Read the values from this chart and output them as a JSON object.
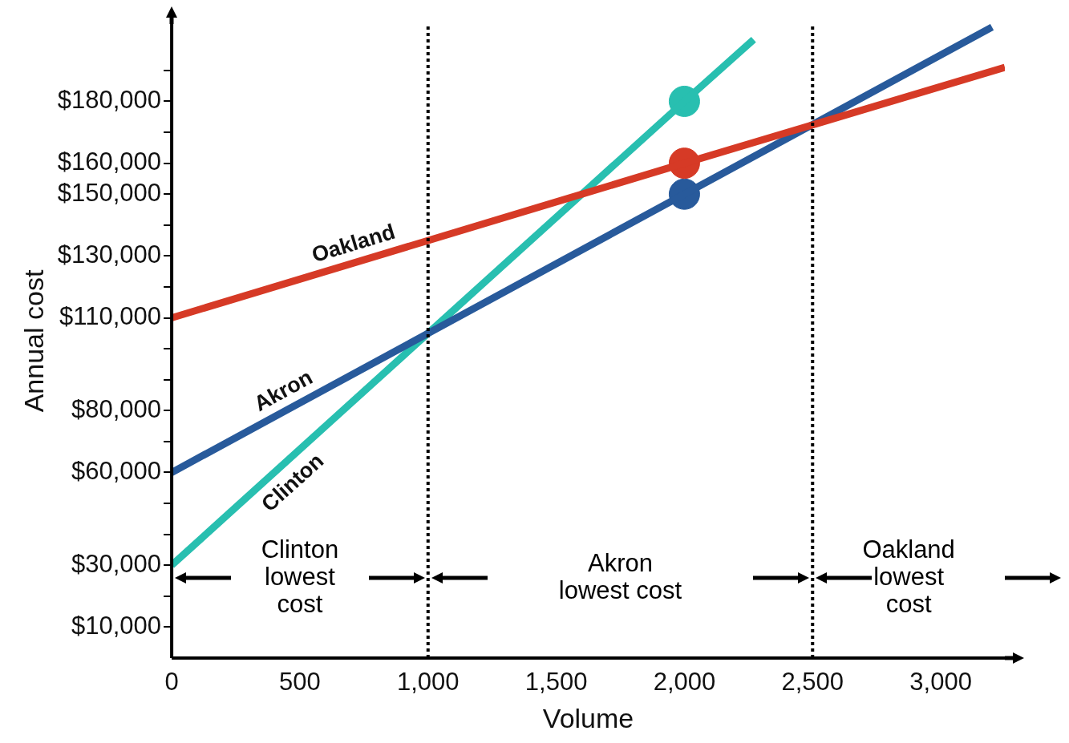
{
  "chart_data": {
    "type": "line",
    "xlabel": "Volume",
    "ylabel": "Annual cost",
    "xlim": [
      0,
      3250
    ],
    "ylim": [
      0,
      205000
    ],
    "xticks": [
      0,
      500,
      {
        "value": 1000,
        "label": "1,000"
      },
      {
        "value": 1500,
        "label": "1,500"
      },
      {
        "value": 2000,
        "label": "2,000"
      },
      {
        "value": 2500,
        "label": "2,500"
      },
      {
        "value": 3000,
        "label": "3,000"
      }
    ],
    "yticks": [
      {
        "value": 10000,
        "label": "$10,000"
      },
      {
        "value": 20000,
        "label": null
      },
      {
        "value": 30000,
        "label": "$30,000"
      },
      {
        "value": 40000,
        "label": null
      },
      {
        "value": 50000,
        "label": null
      },
      {
        "value": 60000,
        "label": "$60,000"
      },
      {
        "value": 70000,
        "label": null
      },
      {
        "value": 80000,
        "label": "$80,000"
      },
      {
        "value": 90000,
        "label": null
      },
      {
        "value": 100000,
        "label": null
      },
      {
        "value": 110000,
        "label": "$110,000"
      },
      {
        "value": 120000,
        "label": null
      },
      {
        "value": 130000,
        "label": "$130,000"
      },
      {
        "value": 140000,
        "label": null
      },
      {
        "value": 150000,
        "label": "$150,000"
      },
      {
        "value": 160000,
        "label": "$160,000"
      },
      {
        "value": 170000,
        "label": null
      },
      {
        "value": 180000,
        "label": "$180,000"
      },
      {
        "value": 190000,
        "label": null
      }
    ],
    "series": [
      {
        "name": "Oakland",
        "color": "#d63a26",
        "x": [
          0,
          2000,
          3250
        ],
        "values": [
          110000,
          160000,
          191000
        ]
      },
      {
        "name": "Akron",
        "color": "#285a9b",
        "x": [
          0,
          2000,
          3200
        ],
        "values": [
          60000,
          150000,
          204000
        ]
      },
      {
        "name": "Clinton",
        "color": "#28bfb0",
        "x": [
          0,
          2000,
          2270
        ],
        "values": [
          30000,
          180000,
          200000
        ]
      },
      {
        "type": "scatter",
        "marker": "circle",
        "color": "#d63a26",
        "x": [
          2000
        ],
        "values": [
          160000
        ]
      },
      {
        "type": "scatter",
        "marker": "circle",
        "color": "#285a9b",
        "x": [
          2000
        ],
        "values": [
          150000
        ]
      },
      {
        "type": "scatter",
        "marker": "circle",
        "color": "#28bfb0",
        "x": [
          2000
        ],
        "values": [
          180000
        ]
      }
    ],
    "ref_lines": [
      {
        "axis": "x",
        "value": 1000,
        "color": "#000000",
        "line_style": "dotted"
      },
      {
        "axis": "x",
        "value": 2500,
        "color": "#000000",
        "line_style": "dotted"
      }
    ],
    "annotations": [
      "Clinton\nlowest\ncost",
      "Akron\nlowest cost",
      "Oakland\nlowest\ncost"
    ],
    "grid": false,
    "legend": false
  }
}
